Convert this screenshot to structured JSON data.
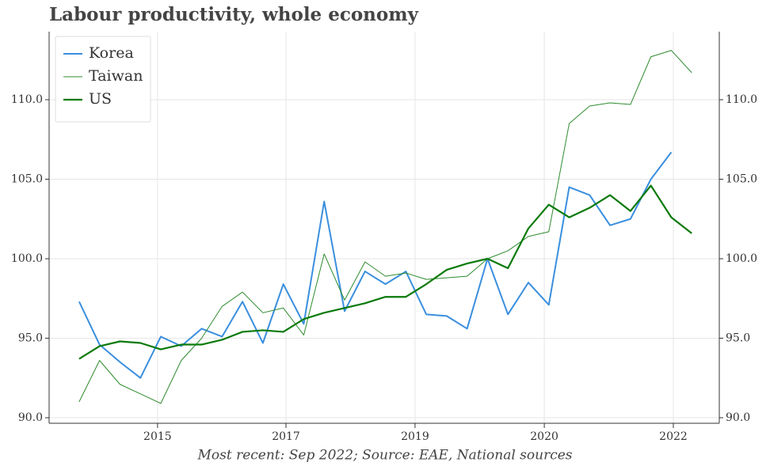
{
  "chart_data": {
    "type": "line",
    "title": "Labour productivity, whole economy",
    "footnote": "Most recent: Sep 2022; Source: EAE, National sources",
    "x": [
      0,
      1,
      2,
      3,
      4,
      5,
      6,
      7,
      8,
      9,
      10,
      11,
      12,
      13,
      14,
      15,
      16,
      17,
      18,
      19,
      20,
      21,
      22,
      23,
      24,
      25,
      26,
      27,
      28,
      29,
      30
    ],
    "xlim": [
      -1.47,
      31.35
    ],
    "xticks": [
      {
        "value": 3.84,
        "label": "2015"
      },
      {
        "value": 10.13,
        "label": "2017"
      },
      {
        "value": 16.45,
        "label": "2019"
      },
      {
        "value": 22.78,
        "label": "2020"
      },
      {
        "value": 29.1,
        "label": "2022"
      }
    ],
    "ylim": [
      89.65,
      114.28
    ],
    "yticks": [
      {
        "value": 90,
        "label": "90.0"
      },
      {
        "value": 95,
        "label": "95.0"
      },
      {
        "value": 100,
        "label": "100.0"
      },
      {
        "value": 105,
        "label": "105.0"
      },
      {
        "value": 110,
        "label": "110.0"
      }
    ],
    "right_axis": true,
    "grid": true,
    "legend": "upper-left",
    "series": [
      {
        "name": "Korea",
        "color": "#3a8fde",
        "width": 2,
        "values": [
          97.3,
          94.6,
          93.5,
          92.5,
          95.1,
          94.5,
          95.6,
          95.1,
          97.3,
          94.7,
          98.4,
          95.9,
          103.6,
          96.7,
          99.2,
          98.4,
          99.2,
          96.5,
          96.4,
          95.6,
          100.0,
          96.5,
          98.5,
          97.1,
          104.5,
          104.0,
          102.1,
          102.5,
          105.0,
          106.7,
          null
        ]
      },
      {
        "name": "Taiwan",
        "color": "#2e8b2e",
        "width": 1,
        "values": [
          91.0,
          93.6,
          92.1,
          91.5,
          90.9,
          93.6,
          95.0,
          97.0,
          97.9,
          96.6,
          96.9,
          95.2,
          100.3,
          97.4,
          99.8,
          98.9,
          99.1,
          98.7,
          98.8,
          98.9,
          100.0,
          100.5,
          101.4,
          101.7,
          108.5,
          109.6,
          109.8,
          109.7,
          112.7,
          113.1,
          111.7
        ]
      },
      {
        "name": "US",
        "color": "#0a7a0a",
        "width": 2.2,
        "values": [
          93.7,
          94.5,
          94.8,
          94.7,
          94.3,
          94.6,
          94.6,
          94.9,
          95.4,
          95.5,
          95.4,
          96.2,
          96.6,
          96.9,
          97.2,
          97.6,
          97.6,
          98.4,
          99.3,
          99.7,
          100.0,
          99.4,
          101.9,
          103.4,
          102.6,
          103.2,
          104.0,
          103.0,
          104.6,
          102.6,
          101.6
        ]
      }
    ]
  }
}
